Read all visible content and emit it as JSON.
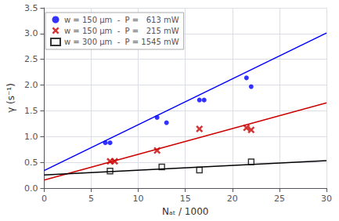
{
  "chart_data": {
    "type": "scatter",
    "xlabel": "Nₐₜ / 1000",
    "ylabel": "γ (s⁻¹)",
    "xlim": [
      0,
      30
    ],
    "ylim": [
      0,
      3.5
    ],
    "xticks": [
      0,
      5,
      10,
      15,
      20,
      25,
      30
    ],
    "yticks": [
      {
        "value": 0,
        "label": "0.0"
      },
      0.5,
      {
        "value": 1,
        "label": "1.0"
      },
      1.5,
      {
        "value": 2,
        "label": "2.0"
      },
      2.5,
      {
        "value": 3,
        "label": "3.0"
      },
      3.5
    ],
    "grid": true,
    "legend": "upper left",
    "series": [
      {
        "type": "line",
        "color": "#0000ff",
        "x": [
          0,
          30
        ],
        "values": [
          0.34,
          3.01
        ]
      },
      {
        "type": "scatter",
        "name": "w = 150 μm  -  P =   613 mW",
        "color": "#0000ff",
        "marker": "circle",
        "x": [
          6.5,
          7.0,
          12.0,
          13.0,
          16.5,
          17.0,
          21.5,
          22.0
        ],
        "values": [
          0.88,
          0.88,
          1.37,
          1.27,
          1.71,
          1.71,
          2.14,
          1.97
        ]
      },
      {
        "type": "line",
        "color": "#cc0000",
        "x": [
          0,
          30
        ],
        "values": [
          0.155,
          1.655
        ]
      },
      {
        "type": "scatter",
        "name": "w = 150 μm  -  P =   215 mW",
        "color": "#cc0000",
        "marker": "x",
        "x": [
          7.0,
          7.5,
          12.0,
          16.5,
          21.5,
          22.0
        ],
        "values": [
          0.52,
          0.52,
          0.73,
          1.15,
          1.17,
          1.13
        ]
      },
      {
        "type": "line",
        "color": "#000000",
        "x": [
          0,
          30
        ],
        "values": [
          0.255,
          0.534
        ]
      },
      {
        "type": "scatter",
        "name": "w = 300 μm  -  P = 1545 mW",
        "color": "#000000",
        "marker": "open_square",
        "x": [
          7.0,
          12.5,
          16.5,
          22.0
        ],
        "values": [
          0.33,
          0.41,
          0.35,
          0.51
        ]
      }
    ]
  }
}
